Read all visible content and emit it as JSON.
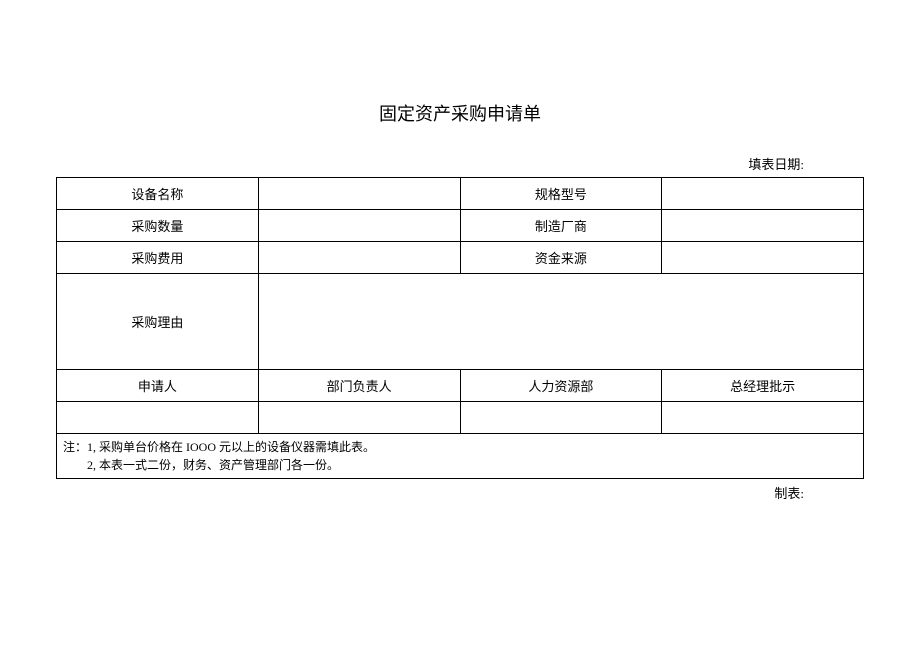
{
  "title": "固定资产采购申请单",
  "dateLabel": "填表日期:",
  "row1": {
    "label1": "设备名称",
    "val1": "",
    "label2": "规格型号",
    "val2": ""
  },
  "row2": {
    "label1": "采购数量",
    "val1": "",
    "label2": "制造厂商",
    "val2": ""
  },
  "row3": {
    "label1": "采购费用",
    "val1": "",
    "label2": "资金来源",
    "val2": ""
  },
  "row4": {
    "label": "采购理由",
    "val": ""
  },
  "row5": {
    "c1": "申请人",
    "c2": "部门负责人",
    "c3": "人力资源部",
    "c4": "总经理批示"
  },
  "row6": {
    "c1": "",
    "c2": "",
    "c3": "",
    "c4": ""
  },
  "notes": "注：1, 采购单台价格在 IOOO 元以上的设备仪器需填此表。\n　　2, 本表一式二份，财务、资产管理部门各一份。",
  "footerLabel": "制表:"
}
